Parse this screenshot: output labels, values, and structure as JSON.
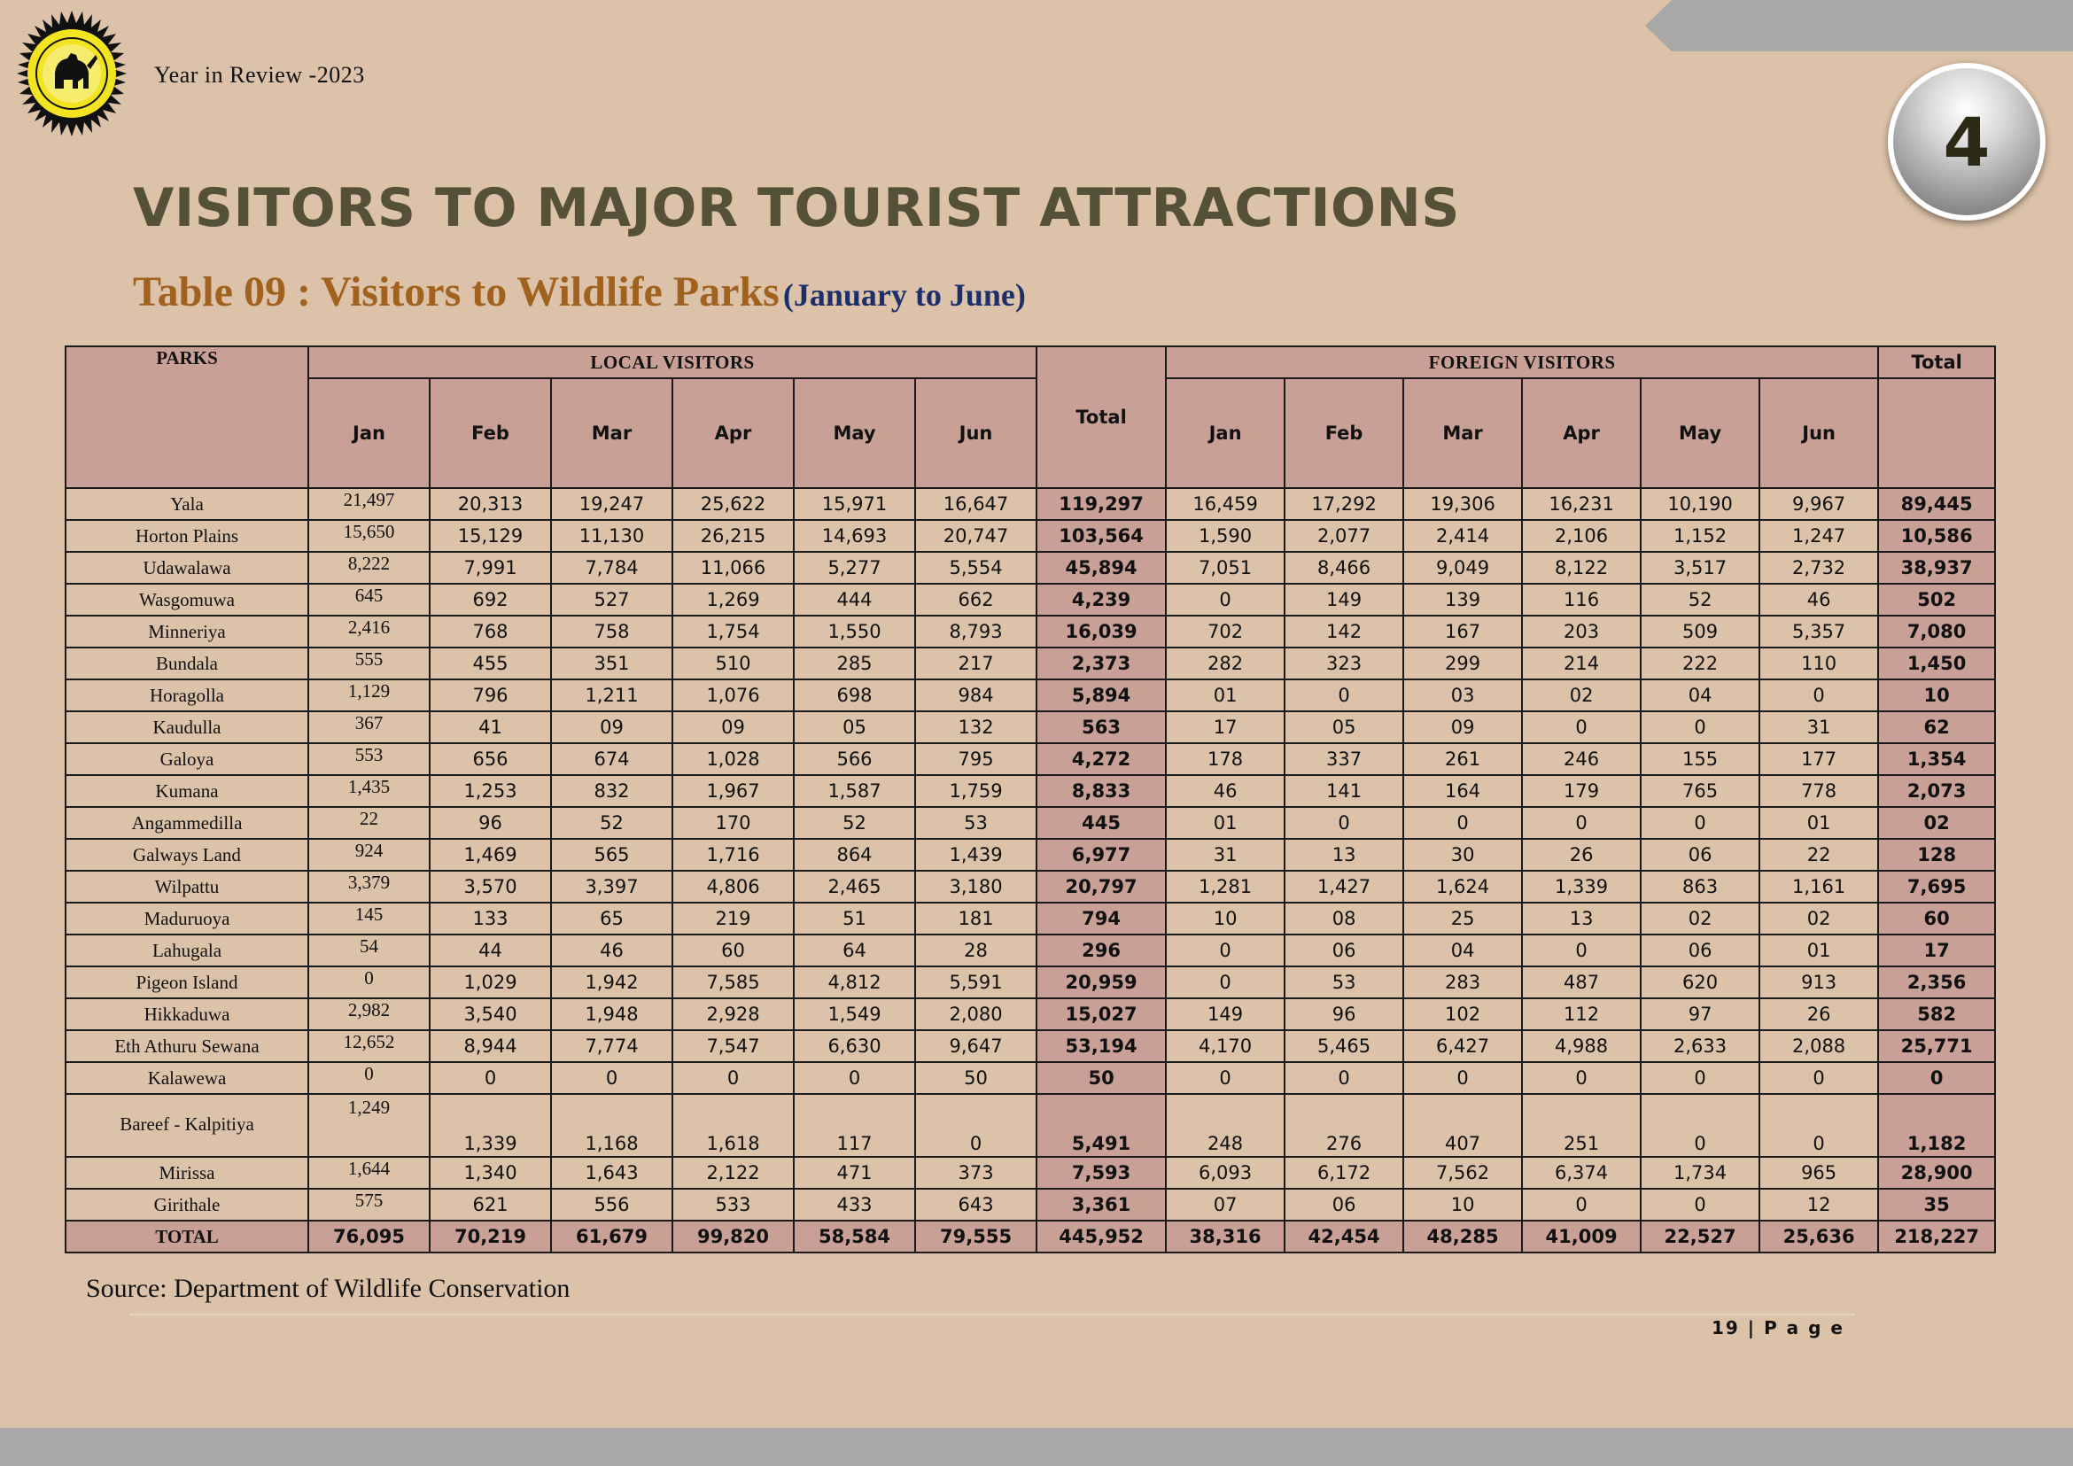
{
  "header": {
    "text": "Year in Review -2023",
    "chapter_number": "4"
  },
  "title": "VISITORS TO MAJOR TOURIST ATTRACTIONS",
  "caption": {
    "main": "Table 09 : Visitors to Wildlife Parks",
    "sub": "(January to June)"
  },
  "table": {
    "parks_header": "PARKS",
    "local_header": "LOCAL   VISITORS",
    "foreign_header": "FOREIGN   VISITORS",
    "total_header": "Total",
    "months": [
      "Jan",
      "Feb",
      "Mar",
      "Apr",
      "May",
      "Jun"
    ],
    "rows": [
      {
        "park": "Yala",
        "local": [
          "21,497",
          "20,313",
          "19,247",
          "25,622",
          "15,971",
          "16,647"
        ],
        "local_total": "119,297",
        "foreign": [
          "16,459",
          "17,292",
          "19,306",
          "16,231",
          "10,190",
          "9,967"
        ],
        "foreign_total": "89,445"
      },
      {
        "park": "Horton Plains",
        "local": [
          "15,650",
          "15,129",
          "11,130",
          "26,215",
          "14,693",
          "20,747"
        ],
        "local_total": "103,564",
        "foreign": [
          "1,590",
          "2,077",
          "2,414",
          "2,106",
          "1,152",
          "1,247"
        ],
        "foreign_total": "10,586"
      },
      {
        "park": " Udawalawa",
        "local": [
          "8,222",
          "7,991",
          "7,784",
          "11,066",
          "5,277",
          "5,554"
        ],
        "local_total": "45,894",
        "foreign": [
          "7,051",
          "8,466",
          "9,049",
          "8,122",
          "3,517",
          "2,732"
        ],
        "foreign_total": "38,937"
      },
      {
        "park": "Wasgomuwa",
        "local": [
          "645",
          "692",
          "527",
          "1,269",
          "444",
          "662"
        ],
        "local_total": "4,239",
        "foreign": [
          "0",
          "149",
          "139",
          "116",
          "52",
          "46"
        ],
        "foreign_total": "502"
      },
      {
        "park": "Minneriya",
        "local": [
          "2,416",
          "768",
          "758",
          "1,754",
          "1,550",
          "8,793"
        ],
        "local_total": "16,039",
        "foreign": [
          "702",
          "142",
          "167",
          "203",
          "509",
          "5,357"
        ],
        "foreign_total": "7,080"
      },
      {
        "park": "Bundala",
        "local": [
          "555",
          "455",
          "351",
          "510",
          "285",
          "217"
        ],
        "local_total": "2,373",
        "foreign": [
          "282",
          "323",
          "299",
          "214",
          "222",
          "110"
        ],
        "foreign_total": "1,450"
      },
      {
        "park": "Horagolla",
        "local": [
          "1,129",
          "796",
          "1,211",
          "1,076",
          "698",
          "984"
        ],
        "local_total": "5,894",
        "foreign": [
          "01",
          "0",
          "03",
          "02",
          "04",
          "0"
        ],
        "foreign_total": "10"
      },
      {
        "park": "Kaudulla",
        "local": [
          "367",
          "41",
          "09",
          "09",
          "05",
          "132"
        ],
        "local_total": "563",
        "foreign": [
          "17",
          "05",
          "09",
          "0",
          "0",
          "31"
        ],
        "foreign_total": "62"
      },
      {
        "park": "Galoya",
        "local": [
          "553",
          "656",
          "674",
          "1,028",
          "566",
          "795"
        ],
        "local_total": "4,272",
        "foreign": [
          "178",
          "337",
          "261",
          "246",
          "155",
          "177"
        ],
        "foreign_total": "1,354"
      },
      {
        "park": "Kumana",
        "local": [
          "1,435",
          "1,253",
          "832",
          "1,967",
          "1,587",
          "1,759"
        ],
        "local_total": "8,833",
        "foreign": [
          "46",
          "141",
          "164",
          "179",
          "765",
          "778"
        ],
        "foreign_total": "2,073"
      },
      {
        "park": "Angammedilla",
        "local": [
          "22",
          "96",
          "52",
          "170",
          "52",
          "53"
        ],
        "local_total": "445",
        "foreign": [
          "01",
          "0",
          "0",
          "0",
          "0",
          "01"
        ],
        "foreign_total": "02"
      },
      {
        "park": "Galways  Land",
        "local": [
          "924",
          "1,469",
          "565",
          "1,716",
          "864",
          "1,439"
        ],
        "local_total": "6,977",
        "foreign": [
          "31",
          "13",
          "30",
          "26",
          "06",
          "22"
        ],
        "foreign_total": "128"
      },
      {
        "park": "Wilpattu",
        "local": [
          "3,379",
          "3,570",
          "3,397",
          "4,806",
          "2,465",
          "3,180"
        ],
        "local_total": "20,797",
        "foreign": [
          "1,281",
          "1,427",
          "1,624",
          "1,339",
          "863",
          "1,161"
        ],
        "foreign_total": "7,695"
      },
      {
        "park": "Maduruoya",
        "local": [
          "145",
          "133",
          "65",
          "219",
          "51",
          "181"
        ],
        "local_total": "794",
        "foreign": [
          "10",
          "08",
          "25",
          "13",
          "02",
          "02"
        ],
        "foreign_total": "60"
      },
      {
        "park": "Lahugala",
        "local": [
          "54",
          "44",
          "46",
          "60",
          "64",
          "28"
        ],
        "local_total": "296",
        "foreign": [
          "0",
          "06",
          "04",
          "0",
          "06",
          "01"
        ],
        "foreign_total": "17"
      },
      {
        "park": "Pigeon Island",
        "local": [
          "0",
          "1,029",
          "1,942",
          "7,585",
          "4,812",
          "5,591"
        ],
        "local_total": "20,959",
        "foreign": [
          "0",
          "53",
          "283",
          "487",
          "620",
          "913"
        ],
        "foreign_total": "2,356"
      },
      {
        "park": "Hikkaduwa",
        "local": [
          "2,982",
          "3,540",
          "1,948",
          "2,928",
          "1,549",
          "2,080"
        ],
        "local_total": "15,027",
        "foreign": [
          "149",
          "96",
          "102",
          "112",
          "97",
          "26"
        ],
        "foreign_total": "582"
      },
      {
        "park": "Eth Athuru Sewana",
        "local": [
          "12,652",
          "8,944",
          "7,774",
          "7,547",
          "6,630",
          "9,647"
        ],
        "local_total": "53,194",
        "foreign": [
          "4,170",
          "5,465",
          "6,427",
          "4,988",
          "2,633",
          "2,088"
        ],
        "foreign_total": "25,771"
      },
      {
        "park": "Kalawewa",
        "local": [
          "0",
          "0",
          "0",
          "0",
          "0",
          "50"
        ],
        "local_total": "50",
        "foreign": [
          "0",
          "0",
          "0",
          "0",
          "0",
          "0"
        ],
        "foreign_total": "0"
      },
      {
        "park": "Bareef - Kalpitiya",
        "tall": true,
        "local": [
          "1,249",
          "1,339",
          "1,168",
          "1,618",
          "117",
          "0"
        ],
        "local_total": "5,491",
        "foreign": [
          "248",
          "276",
          "407",
          "251",
          "0",
          "0"
        ],
        "foreign_total": "1,182"
      },
      {
        "park": "Mirissa",
        "local": [
          "1,644",
          "1,340",
          "1,643",
          "2,122",
          "471",
          "373"
        ],
        "local_total": "7,593",
        "foreign": [
          "6,093",
          "6,172",
          "7,562",
          "6,374",
          "1,734",
          "965"
        ],
        "foreign_total": "28,900"
      },
      {
        "park": "Girithale",
        "local": [
          "575",
          "621",
          "556",
          "533",
          "433",
          "643"
        ],
        "local_total": "3,361",
        "foreign": [
          "07",
          "06",
          "10",
          "0",
          "0",
          "12"
        ],
        "foreign_total": "35"
      }
    ],
    "total_row": {
      "park": "TOTAL",
      "local": [
        "76,095",
        "70,219",
        "61,679",
        "99,820",
        "58,584",
        "79,555"
      ],
      "local_total": "445,952",
      "foreign": [
        "38,316",
        "42,454",
        "48,285",
        "41,009",
        "22,527",
        "25,636"
      ],
      "foreign_total": "218,227"
    }
  },
  "source": "Source: Department of Wildlife  Conservation",
  "footer": {
    "page_label": "19 | P a g e"
  },
  "colors": {
    "background": "#dcc2a8",
    "header_cell": "#c9a096",
    "title": "#555038",
    "caption_main": "#a0621e",
    "caption_sub": "#1c2f6a",
    "band": "#a8a8a8"
  },
  "icons": {
    "logo": "sri-lanka-lion-seal-icon"
  }
}
